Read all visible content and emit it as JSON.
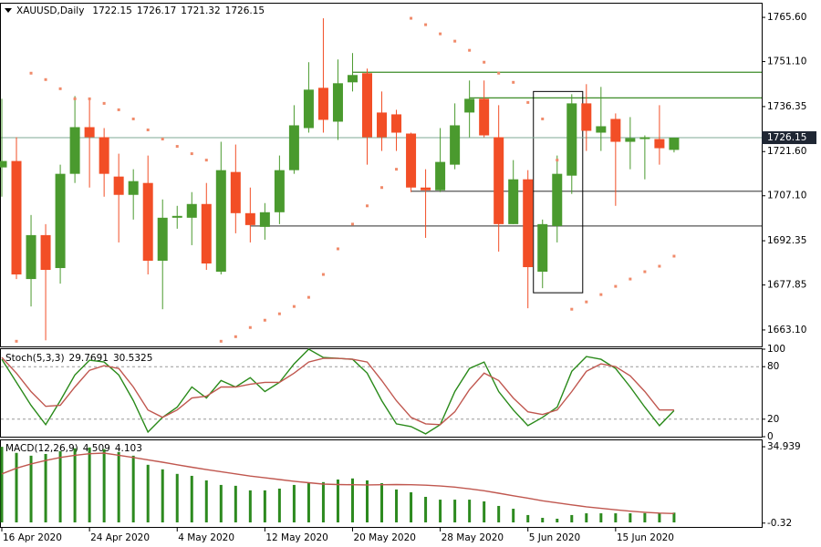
{
  "chart_data": [
    {
      "type": "candlestick",
      "title": "XAUUSD,Daily",
      "categories": [
        "16 Apr 2020",
        null,
        null,
        null,
        null,
        null,
        "24 Apr 2020",
        null,
        null,
        null,
        null,
        null,
        "4 May 2020",
        null,
        null,
        null,
        null,
        null,
        "12 May 2020",
        null,
        null,
        null,
        null,
        null,
        "20 May 2020",
        null,
        null,
        null,
        null,
        null,
        "28 May 2020",
        null,
        null,
        null,
        null,
        null,
        "5 Jun 2020",
        null,
        null,
        null,
        null,
        null,
        "15 Jun 2020",
        null,
        null,
        null,
        null
      ],
      "open": [
        1716.4,
        1718.5,
        1679.8,
        1694.2,
        1683.4,
        1714.3,
        1729.6,
        1726.3,
        1713.4,
        1707.4,
        1711.3,
        1685.8,
        1699.9,
        1699.9,
        1704.4,
        1682.2,
        1714.9,
        1701.4,
        1696.9,
        1701.7,
        1715.5,
        1729.3,
        1742.5,
        1731.4,
        1744.3,
        1747.3,
        1734.4,
        1733.8,
        1727.5,
        1709.8,
        1708.9,
        1717.3,
        1734.4,
        1738.9,
        1726.3,
        1697.8,
        1712.5,
        1682.2,
        1697.2,
        1713.7,
        1737.4,
        1727.8,
        1732.3,
        1724.8,
        1725.7,
        1725.7,
        1722.15
      ],
      "high": [
        1738.9,
        1726.3,
        1700.8,
        1697.8,
        1717.3,
        1739.8,
        1739.2,
        1729.3,
        1720.9,
        1715.8,
        1720.3,
        1705.9,
        1703.8,
        1708.3,
        1711.3,
        1724.8,
        1723.9,
        1709.8,
        1704.7,
        1720.3,
        1736.8,
        1750.9,
        1765.3,
        1751.8,
        1753.9,
        1748.8,
        1741.3,
        1735.3,
        1727.8,
        1715.8,
        1729.3,
        1737.4,
        1744.9,
        1744.9,
        1736.8,
        1718.8,
        1715.5,
        1699.3,
        1720.3,
        1740.4,
        1743.7,
        1742.8,
        1734.1,
        1732.9,
        1726.9,
        1736.8,
        1726.17
      ],
      "low": [
        1706.8,
        1679.8,
        1670.8,
        1659.7,
        1678.3,
        1711.3,
        1709.8,
        1706.8,
        1691.8,
        1699.3,
        1681.3,
        1669.9,
        1696.3,
        1690.9,
        1682.8,
        1681.3,
        1694.8,
        1691.8,
        1692.7,
        1697.8,
        1714.3,
        1727.8,
        1727.8,
        1725.4,
        1741.3,
        1717.3,
        1721.8,
        1721.8,
        1708.3,
        1693.3,
        1708.3,
        1715.8,
        1726.3,
        1726.3,
        1688.8,
        1697.8,
        1670.2,
        1676.8,
        1691.8,
        1707.7,
        1721.8,
        1721.8,
        1703.8,
        1715.8,
        1712.5,
        1717.3,
        1721.32
      ],
      "close": [
        1718.5,
        1681.3,
        1694.2,
        1682.8,
        1714.3,
        1729.6,
        1726.3,
        1714.3,
        1707.4,
        1711.9,
        1685.8,
        1699.9,
        1700.5,
        1704.4,
        1684.9,
        1715.5,
        1701.4,
        1697.5,
        1701.7,
        1715.5,
        1730.2,
        1741.9,
        1732.0,
        1744.0,
        1746.7,
        1726.3,
        1726.3,
        1727.8,
        1709.8,
        1708.9,
        1718.2,
        1730.2,
        1738.9,
        1726.9,
        1697.8,
        1712.5,
        1683.7,
        1697.8,
        1714.3,
        1737.4,
        1728.4,
        1729.9,
        1724.8,
        1726.0,
        1726.3,
        1722.7,
        1726.15
      ],
      "up_color": "#4a9a2e",
      "down_color": "#f24e26",
      "sar": {
        "color": "#f08a6a",
        "values": [
          null,
          1659.4,
          1747.3,
          1745.2,
          1742.2,
          1738.9,
          1738.9,
          1737.4,
          1735.3,
          1732.3,
          1728.7,
          1725.7,
          1723.3,
          1720.9,
          1718.8,
          1659.4,
          1660.9,
          1663.9,
          1666.3,
          1668.4,
          1670.8,
          1673.8,
          1681.3,
          1689.7,
          1697.8,
          1703.8,
          1709.8,
          1715.8,
          1765.3,
          1763.2,
          1760.2,
          1757.8,
          1754.8,
          1750.9,
          1747.3,
          1744.3,
          1737.7,
          1732.3,
          1718.8,
          1669.9,
          1672.3,
          1674.7,
          1677.4,
          1679.8,
          1682.2,
          1684.0,
          1687.3
        ]
      },
      "hlines": [
        {
          "value": 1747.6,
          "color": "#3c8c28"
        },
        {
          "value": 1739.2,
          "color": "#3c8c28"
        },
        {
          "value": 1708.6,
          "color": "#555555"
        },
        {
          "value": 1697.2,
          "color": "#555555"
        }
      ],
      "box": {
        "high": 1741.3,
        "low": 1675.3
      },
      "ylim": [
        1657.7,
        1770.1
      ],
      "yticks": [
        {
          "value": 1765.6,
          "label": "1765.60"
        },
        {
          "value": 1751.1,
          "label": "1751.10"
        },
        1736.35,
        {
          "value": 1721.6,
          "label": "1721.60"
        },
        {
          "value": 1707.1,
          "label": "1707.10"
        },
        1692.35,
        1677.85,
        {
          "value": 1663.1,
          "label": "1663.10"
        }
      ]
    },
    {
      "type": "line",
      "title": "Stoch(5,3,3)",
      "series": [
        {
          "color": "#2a8a1a",
          "values": [
            88.4,
            62.1,
            35.8,
            13.7,
            41.1,
            70.5,
            87.4,
            85.3,
            70.5,
            41.1,
            5.3,
            22.1,
            33.7,
            56.8,
            44.2,
            64.2,
            56.8,
            67.4,
            51.6,
            62.1,
            83.2,
            100,
            90.5,
            89.5,
            88.4,
            72.6,
            41.1,
            14.7,
            11.6,
            3.2,
            13.7,
            51.6,
            77.9,
            85.3,
            51.6,
            30.5,
            12.6,
            22.1,
            33.7,
            74.7,
            91.6,
            88.4,
            77.9,
            56.8,
            33.7,
            12.6,
            29.7691
          ]
        },
        {
          "color": "#c0574f",
          "values": [
            90.5,
            72.6,
            51.6,
            34.7,
            35.8,
            56.8,
            75.8,
            81.1,
            77.9,
            56.8,
            30.5,
            22.1,
            30.5,
            44.2,
            46.3,
            56.8,
            56.8,
            60.0,
            62.1,
            62.1,
            72.6,
            85.3,
            89.5,
            89.5,
            88.4,
            85.3,
            64.2,
            41.1,
            22.1,
            14.7,
            13.7,
            28.4,
            53.7,
            72.6,
            64.2,
            44.2,
            28.4,
            25.3,
            30.5,
            51.6,
            74.7,
            83.2,
            80.0,
            69.5,
            51.6,
            30.5,
            30.5325
          ]
        }
      ],
      "levels": [
        80,
        20
      ],
      "ylim": [
        0,
        100
      ],
      "yticks": [
        100,
        80,
        20,
        0
      ]
    },
    {
      "type": "macd",
      "title": "MACD(12,26,9)",
      "histogram": {
        "color": "#2d8a1f",
        "values": [
          34.9,
          32.1,
          30.8,
          31.6,
          32.9,
          34.2,
          34.6,
          33.8,
          32.5,
          30.8,
          26.6,
          24.5,
          22.4,
          21.5,
          19.4,
          17.3,
          16.9,
          14.8,
          14.8,
          15.6,
          17.3,
          18.1,
          18.6,
          19.8,
          20.3,
          19.4,
          18.1,
          15.2,
          13.9,
          11.8,
          10.5,
          10.5,
          10.5,
          9.7,
          7.6,
          6.3,
          3.4,
          2.1,
          1.7,
          3.4,
          4.2,
          4.2,
          4.2,
          4.2,
          4.3,
          4.4,
          4.509
        ]
      },
      "series": [
        {
          "color": "#c0574f",
          "values": [
            22.4,
            25.0,
            27.0,
            28.6,
            30.0,
            31.0,
            31.7,
            32.0,
            31.0,
            30.0,
            28.9,
            27.8,
            26.6,
            25.5,
            24.4,
            23.4,
            22.4,
            21.4,
            20.6,
            19.8,
            19.0,
            18.3,
            17.7,
            17.5,
            17.4,
            17.3,
            17.4,
            17.5,
            17.4,
            17.2,
            16.8,
            16.3,
            15.5,
            14.6,
            13.5,
            12.3,
            11.2,
            10.0,
            9.0,
            8.1,
            7.2,
            6.5,
            5.8,
            5.2,
            4.7,
            4.3,
            4.103
          ]
        }
      ],
      "ylim": [
        -2.1,
        37.9
      ],
      "yticks": [
        34.939,
        -0.32
      ]
    }
  ]
}
